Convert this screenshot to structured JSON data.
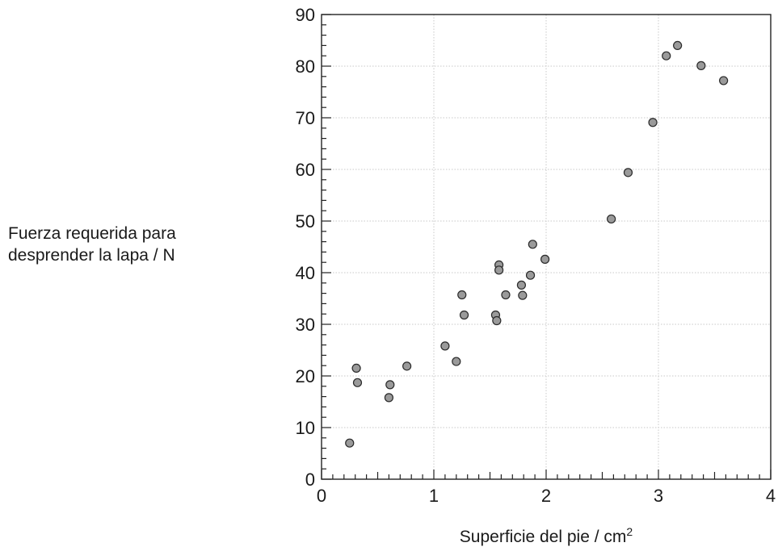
{
  "chart_data": {
    "type": "scatter",
    "xlabel": "Superficie del pie / cm",
    "xlabel_sup": "2",
    "ylabel_lines": [
      "Fuerza requerida para",
      "desprender la lapa / N"
    ],
    "xlim": [
      0,
      4
    ],
    "ylim": [
      0,
      90
    ],
    "x_ticks": [
      0,
      1,
      2,
      3,
      4
    ],
    "y_ticks": [
      0,
      10,
      20,
      30,
      40,
      50,
      60,
      70,
      80,
      90
    ],
    "grid": true,
    "marker_color": "#9a9a9a",
    "points": [
      {
        "x": 0.25,
        "y": 7
      },
      {
        "x": 0.31,
        "y": 21.5
      },
      {
        "x": 0.32,
        "y": 18.7
      },
      {
        "x": 0.61,
        "y": 18.3
      },
      {
        "x": 0.6,
        "y": 15.8
      },
      {
        "x": 0.76,
        "y": 21.9
      },
      {
        "x": 1.1,
        "y": 25.8
      },
      {
        "x": 1.2,
        "y": 22.8
      },
      {
        "x": 1.25,
        "y": 35.7
      },
      {
        "x": 1.27,
        "y": 31.8
      },
      {
        "x": 1.55,
        "y": 31.8
      },
      {
        "x": 1.56,
        "y": 30.7
      },
      {
        "x": 1.58,
        "y": 41.5
      },
      {
        "x": 1.58,
        "y": 40.5
      },
      {
        "x": 1.64,
        "y": 35.7
      },
      {
        "x": 1.78,
        "y": 37.6
      },
      {
        "x": 1.79,
        "y": 35.6
      },
      {
        "x": 1.86,
        "y": 39.5
      },
      {
        "x": 1.88,
        "y": 45.5
      },
      {
        "x": 1.99,
        "y": 42.6
      },
      {
        "x": 2.58,
        "y": 50.4
      },
      {
        "x": 2.73,
        "y": 59.4
      },
      {
        "x": 2.95,
        "y": 69.1
      },
      {
        "x": 3.07,
        "y": 82
      },
      {
        "x": 3.17,
        "y": 84
      },
      {
        "x": 3.38,
        "y": 80.1
      },
      {
        "x": 3.58,
        "y": 77.2
      }
    ]
  }
}
